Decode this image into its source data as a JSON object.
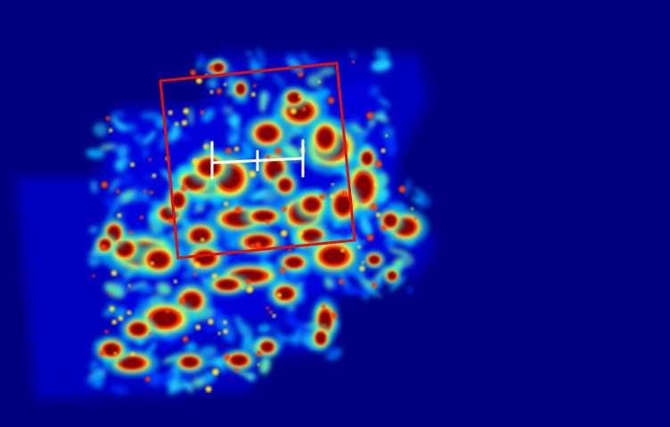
{
  "image": {
    "description_free": true,
    "colormap": [
      "#00008b",
      "#0000ff",
      "#00bfff",
      "#7fff7f",
      "#ffff00",
      "#ff3000",
      "#7f0000"
    ],
    "background_color": "#000080",
    "box_color": "#e01010",
    "marker_color": "#ffffff"
  }
}
